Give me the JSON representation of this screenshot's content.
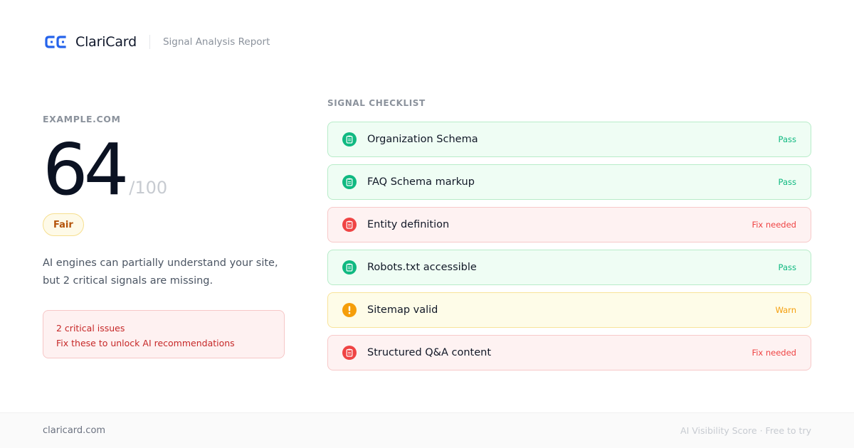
{
  "header": {
    "brand": "ClariCard",
    "subtitle": "Signal Analysis Report",
    "logo_icon": "cc-logo-icon",
    "brand_color": "#2563eb"
  },
  "report": {
    "domain": "EXAMPLE.COM",
    "score": "64",
    "score_max": "/100",
    "score_value": 64,
    "rating": "Fair",
    "summary": "AI engines can partially understand your site, but 2 critical signals are missing.",
    "alert": {
      "line1": "2 critical issues",
      "line2": "Fix these to unlock AI recommendations"
    }
  },
  "checklist": {
    "heading": "SIGNAL CHECKLIST",
    "items": [
      {
        "label": "Organization Schema",
        "status": "Pass",
        "state": "pass",
        "icon": "clipboard-icon"
      },
      {
        "label": "FAQ Schema markup",
        "status": "Pass",
        "state": "pass",
        "icon": "clipboard-icon"
      },
      {
        "label": "Entity definition",
        "status": "Fix needed",
        "state": "fail",
        "icon": "clipboard-icon"
      },
      {
        "label": "Robots.txt accessible",
        "status": "Pass",
        "state": "pass",
        "icon": "clipboard-icon"
      },
      {
        "label": "Sitemap valid",
        "status": "Warn",
        "state": "warn",
        "icon": "exclamation-icon"
      },
      {
        "label": "Structured Q&A content",
        "status": "Fix needed",
        "state": "fail",
        "icon": "clipboard-icon"
      }
    ]
  },
  "colors": {
    "pass": "#10b981",
    "fail": "#ef4444",
    "warn": "#f59e0b",
    "rating": "#b45309"
  },
  "footer": {
    "site": "claricard.com",
    "tagline": "AI Visibility Score · Free to try"
  }
}
